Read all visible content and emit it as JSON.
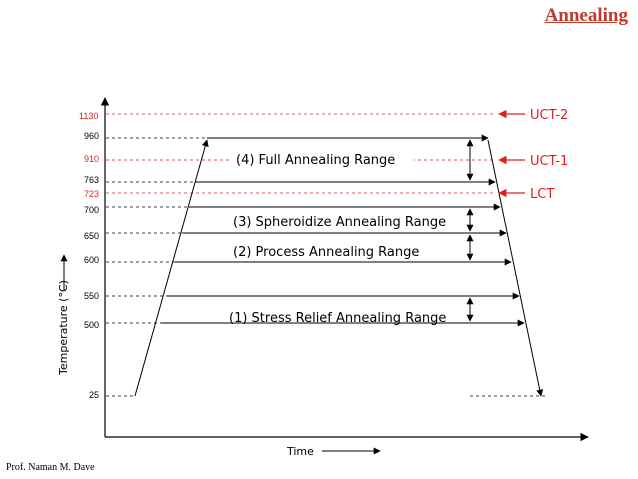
{
  "slide": {
    "title": "Annealing",
    "footer": "Prof. Naman M. Dave"
  },
  "colors": {
    "critical": "#e02020",
    "line": "#000000",
    "title": "#c0392b"
  },
  "axes": {
    "y_label": "Temperature (°C)",
    "x_label": "Time",
    "ticks": [
      {
        "label": "1130",
        "color": "red"
      },
      {
        "label": "960",
        "color": "black"
      },
      {
        "label": "910",
        "color": "red"
      },
      {
        "label": "763",
        "color": "black"
      },
      {
        "label": "723",
        "color": "red"
      },
      {
        "label": "700",
        "color": "black"
      },
      {
        "label": "650",
        "color": "black"
      },
      {
        "label": "600",
        "color": "black"
      },
      {
        "label": "550",
        "color": "black"
      },
      {
        "label": "500",
        "color": "black"
      },
      {
        "label": "25",
        "color": "black"
      }
    ]
  },
  "critical_temps": [
    {
      "label": "UCT-2",
      "temp": "1130"
    },
    {
      "label": "UCT-1",
      "temp": "910"
    },
    {
      "label": "LCT",
      "temp": "723"
    }
  ],
  "ranges": [
    {
      "label": "(4) Full Annealing Range",
      "from": "763",
      "to": "960"
    },
    {
      "label": "(3) Spheroidize Annealing Range",
      "from": "650",
      "to": "700"
    },
    {
      "label": "(2) Process Annealing Range",
      "from": "600",
      "to": "650"
    },
    {
      "label": "(1) Stress Relief Annealing Range",
      "from": "500",
      "to": "550"
    }
  ]
}
